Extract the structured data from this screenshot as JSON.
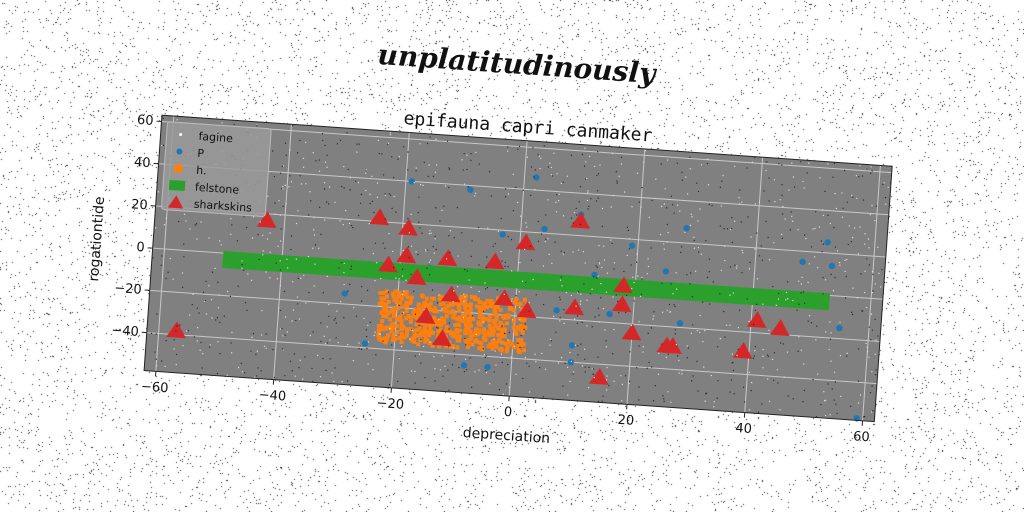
{
  "suptitle": "unplatitudinously",
  "chart_data": {
    "type": "scatter",
    "title": "epifauna capri canmaker",
    "xlabel": "depreciation",
    "ylabel": "rogationtide",
    "xlim": [
      -62,
      62
    ],
    "ylim": [
      -58,
      63
    ],
    "xticks": [
      -60,
      -40,
      -20,
      0,
      20,
      40,
      60
    ],
    "yticks": [
      -40,
      -20,
      0,
      20,
      40,
      60
    ],
    "grid": true,
    "legend_position": "top-left",
    "background_color": "#808080",
    "series": [
      {
        "name": "fagine",
        "marker": "dot",
        "color": "#ffffff",
        "x": [],
        "y": []
      },
      {
        "name": "P",
        "marker": "circle",
        "color": "#1f77b4",
        "x": [
          -19,
          -9,
          2,
          -3,
          4,
          10,
          19,
          28,
          25,
          48,
          52,
          53,
          13,
          49,
          55,
          34,
          28,
          -29,
          -25,
          -8,
          -4,
          10,
          10,
          59,
          7,
          -15,
          16
        ],
        "y": [
          40,
          38,
          46,
          18,
          22,
          30,
          17,
          27,
          6,
          15,
          25,
          14,
          2,
          -2,
          -15,
          -3,
          -18,
          -15,
          -38,
          -45,
          -45,
          -32,
          -40,
          -57,
          -16,
          0,
          -16
        ]
      },
      {
        "name": "h.",
        "marker": "square",
        "color": "#ff7f0e",
        "cluster": {
          "x_range": [
            -23,
            2
          ],
          "y_range": [
            -37,
            -12
          ]
        }
      },
      {
        "name": "felstone",
        "marker": "square",
        "color": "#2ca02c",
        "band": {
          "x_range": [
            -50,
            53
          ],
          "y_center": -3,
          "y_halfwidth": 4
        }
      },
      {
        "name": "sharkskins",
        "marker": "triangle",
        "color": "#d62728",
        "x": [
          -57,
          -43,
          -24,
          -22,
          -19,
          -19,
          -17,
          -12,
          -11,
          -15,
          -12,
          -4,
          1,
          -2,
          2,
          10,
          10,
          18,
          18,
          20,
          15,
          26,
          27,
          39,
          41,
          45
        ],
        "y": [
          -38,
          17,
          22,
          0,
          18,
          5,
          -5,
          5,
          -12,
          -23,
          -33,
          5,
          15,
          -12,
          -17,
          27,
          -14,
          -2,
          -11,
          -24,
          -46,
          -29,
          -29,
          -29,
          -14,
          -17
        ]
      }
    ]
  }
}
